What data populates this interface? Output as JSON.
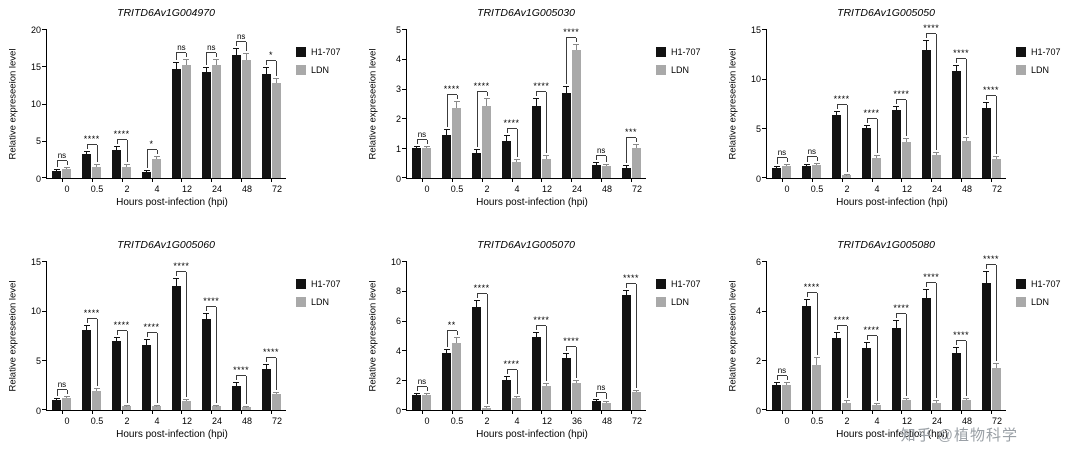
{
  "watermark": "知乎 @植物科学",
  "colors": {
    "h1707": "#121212",
    "ldn": "#a9a9a9",
    "err_h1707": "#121212",
    "err_ldn": "#8a8a8a",
    "bracket": "#3c3c3c"
  },
  "chart_data": [
    {
      "type": "bar",
      "title": "TRITD6Av1G004970",
      "xlabel": "Hours post-infection (hpi)",
      "ylabel": "Relative expreseeion level",
      "categories": [
        "0",
        "0.5",
        "2",
        "4",
        "12",
        "24",
        "48",
        "72"
      ],
      "ylim": [
        0,
        20
      ],
      "yticks": [
        0,
        5,
        10,
        15,
        20
      ],
      "legend_position": "right",
      "grid": false,
      "series": [
        {
          "name": "H1-707",
          "values": [
            1.0,
            3.2,
            3.7,
            0.8,
            14.7,
            14.2,
            16.5,
            14.0
          ],
          "errors": [
            0.1,
            0.3,
            0.4,
            0.1,
            0.8,
            0.6,
            0.8,
            0.8
          ]
        },
        {
          "name": "LDN",
          "values": [
            1.2,
            1.5,
            1.5,
            2.5,
            15.2,
            15.2,
            15.9,
            12.8
          ],
          "errors": [
            0.15,
            0.2,
            0.2,
            0.3,
            0.7,
            0.6,
            0.7,
            0.5
          ]
        }
      ],
      "significance": [
        "ns",
        "****",
        "****",
        "*",
        "ns",
        "ns",
        "ns",
        "*"
      ]
    },
    {
      "type": "bar",
      "title": "TRITD6Av1G005030",
      "xlabel": "Hours post-infection (hpi)",
      "ylabel": "Relative expreseeion level",
      "categories": [
        "0",
        "0.5",
        "2",
        "4",
        "12",
        "24",
        "48",
        "72"
      ],
      "ylim": [
        0,
        5
      ],
      "yticks": [
        0,
        1,
        2,
        3,
        4,
        5
      ],
      "legend_position": "right",
      "grid": false,
      "series": [
        {
          "name": "H1-707",
          "values": [
            1.0,
            1.45,
            0.85,
            1.25,
            2.4,
            2.85,
            0.45,
            0.35
          ],
          "errors": [
            0.05,
            0.15,
            0.1,
            0.15,
            0.25,
            0.2,
            0.05,
            0.05
          ]
        },
        {
          "name": "LDN",
          "values": [
            1.0,
            2.35,
            2.4,
            0.55,
            0.65,
            4.3,
            0.4,
            1.0
          ],
          "errors": [
            0.05,
            0.2,
            0.25,
            0.05,
            0.1,
            0.15,
            0.05,
            0.1
          ]
        }
      ],
      "significance": [
        "ns",
        "****",
        "****",
        "****",
        "****",
        "****",
        "ns",
        "***"
      ]
    },
    {
      "type": "bar",
      "title": "TRITD6Av1G005050",
      "xlabel": "Hours post-infection (hpi)",
      "ylabel": "Relative expreseeion level",
      "categories": [
        "0",
        "0.5",
        "2",
        "4",
        "12",
        "24",
        "48",
        "72"
      ],
      "ylim": [
        0,
        15
      ],
      "yticks": [
        0,
        5,
        10,
        15
      ],
      "legend_position": "right",
      "grid": false,
      "series": [
        {
          "name": "H1-707",
          "values": [
            1.0,
            1.2,
            6.3,
            5.0,
            6.8,
            12.9,
            10.8,
            7.0
          ],
          "errors": [
            0.1,
            0.15,
            0.3,
            0.25,
            0.35,
            0.9,
            0.5,
            0.6
          ]
        },
        {
          "name": "LDN",
          "values": [
            1.2,
            1.3,
            0.3,
            2.0,
            3.6,
            2.3,
            3.7,
            1.9
          ],
          "errors": [
            0.15,
            0.15,
            0.05,
            0.2,
            0.3,
            0.2,
            0.3,
            0.2
          ]
        }
      ],
      "significance": [
        "ns",
        "ns",
        "****",
        "****",
        "****",
        "****",
        "****",
        "****"
      ]
    },
    {
      "type": "bar",
      "title": "TRITD6Av1G005060",
      "xlabel": "Hours post-infection (hpi)",
      "ylabel": "Relative expreseeion level",
      "categories": [
        "0",
        "0.5",
        "2",
        "4",
        "12",
        "24",
        "48",
        "72"
      ],
      "ylim": [
        0,
        15
      ],
      "yticks": [
        0,
        5,
        10,
        15
      ],
      "legend_position": "right",
      "grid": false,
      "series": [
        {
          "name": "H1-707",
          "values": [
            1.0,
            8.1,
            6.9,
            6.5,
            12.5,
            9.2,
            2.4,
            4.1
          ],
          "errors": [
            0.1,
            0.4,
            0.35,
            0.5,
            0.7,
            0.5,
            0.3,
            0.4
          ]
        },
        {
          "name": "LDN",
          "values": [
            1.2,
            1.9,
            0.4,
            0.4,
            0.9,
            0.4,
            0.3,
            1.6
          ],
          "errors": [
            0.1,
            0.2,
            0.05,
            0.05,
            0.1,
            0.05,
            0.05,
            0.15
          ]
        }
      ],
      "significance": [
        "ns",
        "****",
        "****",
        "****",
        "****",
        "****",
        "****",
        "****"
      ]
    },
    {
      "type": "bar",
      "title": "TRITD6Av1G005070",
      "xlabel": "Hours post-infection (hpi)",
      "ylabel": "Relative expreseeion level",
      "categories": [
        "0",
        "0.5",
        "2",
        "4",
        "12",
        "36",
        "48",
        "72"
      ],
      "ylim": [
        0,
        10
      ],
      "yticks": [
        0,
        2,
        4,
        6,
        8,
        10
      ],
      "legend_position": "right",
      "grid": false,
      "series": [
        {
          "name": "H1-707",
          "values": [
            1.0,
            3.8,
            6.9,
            2.0,
            4.9,
            3.5,
            0.6,
            7.7
          ],
          "errors": [
            0.1,
            0.25,
            0.4,
            0.2,
            0.3,
            0.25,
            0.1,
            0.3
          ]
        },
        {
          "name": "LDN",
          "values": [
            1.0,
            4.5,
            0.15,
            0.8,
            1.6,
            1.8,
            0.5,
            1.2
          ],
          "errors": [
            0.1,
            0.3,
            0.05,
            0.1,
            0.15,
            0.15,
            0.05,
            0.1
          ]
        }
      ],
      "significance": [
        "ns",
        "**",
        "****",
        "****",
        "****",
        "****",
        "ns",
        "****"
      ]
    },
    {
      "type": "bar",
      "title": "TRITD6Av1G005080",
      "xlabel": "Hours post-infection (hpi)",
      "ylabel": "Relative expreseeion level",
      "categories": [
        "0",
        "0.5",
        "2",
        "4",
        "12",
        "24",
        "48",
        "72"
      ],
      "ylim": [
        0,
        6
      ],
      "yticks": [
        0,
        2,
        4,
        6
      ],
      "legend_position": "right",
      "grid": false,
      "series": [
        {
          "name": "H1-707",
          "values": [
            1.0,
            4.2,
            2.9,
            2.5,
            3.3,
            4.5,
            2.3,
            5.1
          ],
          "errors": [
            0.08,
            0.25,
            0.2,
            0.2,
            0.3,
            0.35,
            0.2,
            0.45
          ]
        },
        {
          "name": "LDN",
          "values": [
            1.0,
            1.8,
            0.3,
            0.2,
            0.4,
            0.3,
            0.4,
            1.7
          ],
          "errors": [
            0.08,
            0.3,
            0.05,
            0.04,
            0.05,
            0.05,
            0.05,
            0.15
          ]
        }
      ],
      "significance": [
        "ns",
        "****",
        "****",
        "****",
        "****",
        "****",
        "****",
        "****"
      ]
    }
  ]
}
